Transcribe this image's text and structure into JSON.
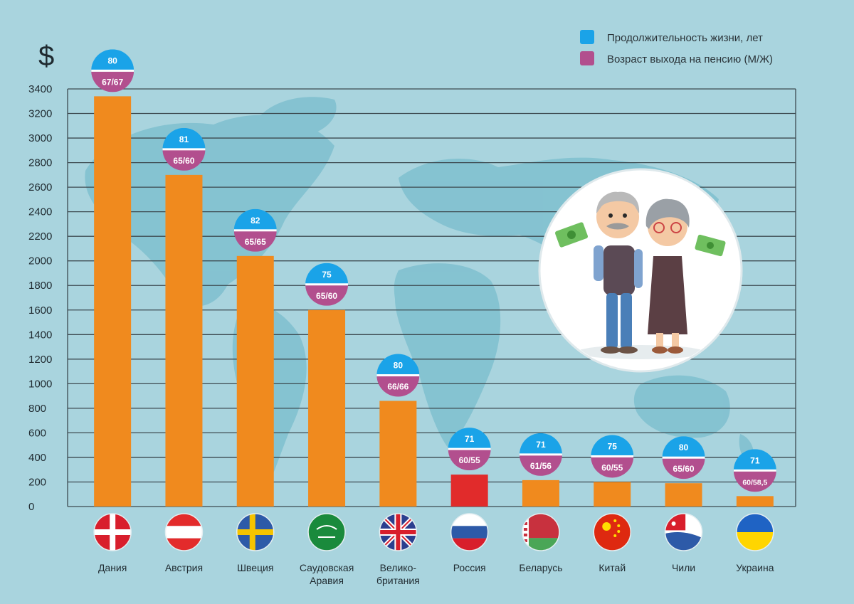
{
  "chart_data": {
    "type": "bar",
    "currency_symbol": "$",
    "ylim": [
      0,
      3400
    ],
    "yticks": [
      0,
      200,
      400,
      600,
      800,
      1000,
      1200,
      1400,
      1600,
      1800,
      2000,
      2200,
      2400,
      2600,
      2800,
      3000,
      3200,
      3400
    ],
    "grid": true,
    "legend_position": "top-right",
    "legend": [
      {
        "label": "Продолжительность жизни, лет",
        "color": "#1aa3e8"
      },
      {
        "label": "Возраст выхода на пенсию (М/Ж)",
        "color": "#b24f8e"
      }
    ],
    "bar_color": "#f08a1e",
    "highlight_color": "#e12b2b",
    "categories": [
      {
        "lines": [
          "Дания"
        ],
        "value": 3340,
        "life": "80",
        "retire": "67/67",
        "flag": "denmark",
        "highlight": false
      },
      {
        "lines": [
          "Австрия"
        ],
        "value": 2700,
        "life": "81",
        "retire": "65/60",
        "flag": "austria",
        "highlight": false
      },
      {
        "lines": [
          "Швеция"
        ],
        "value": 2040,
        "life": "82",
        "retire": "65/65",
        "flag": "sweden",
        "highlight": false
      },
      {
        "lines": [
          "Саудовская",
          "Аравия"
        ],
        "value": 1600,
        "life": "75",
        "retire": "65/60",
        "flag": "saudi-arabia",
        "highlight": false
      },
      {
        "lines": [
          "Велико-",
          "британия"
        ],
        "value": 860,
        "life": "80",
        "retire": "66/66",
        "flag": "united-kingdom",
        "highlight": false
      },
      {
        "lines": [
          "Россия"
        ],
        "value": 260,
        "life": "71",
        "retire": "60/55",
        "flag": "russia",
        "highlight": true
      },
      {
        "lines": [
          "Беларусь"
        ],
        "value": 215,
        "life": "71",
        "retire": "61/56",
        "flag": "belarus",
        "highlight": false
      },
      {
        "lines": [
          "Китай"
        ],
        "value": 200,
        "life": "75",
        "retire": "60/55",
        "flag": "china",
        "highlight": false
      },
      {
        "lines": [
          "Чили"
        ],
        "value": 190,
        "life": "80",
        "retire": "65/60",
        "flag": "chile",
        "highlight": false
      },
      {
        "lines": [
          "Украина"
        ],
        "value": 85,
        "life": "71",
        "retire": "60/58,5",
        "flag": "ukraine",
        "highlight": false
      }
    ]
  },
  "illustration": {
    "name": "elderly-couple-holding-money-icon"
  }
}
